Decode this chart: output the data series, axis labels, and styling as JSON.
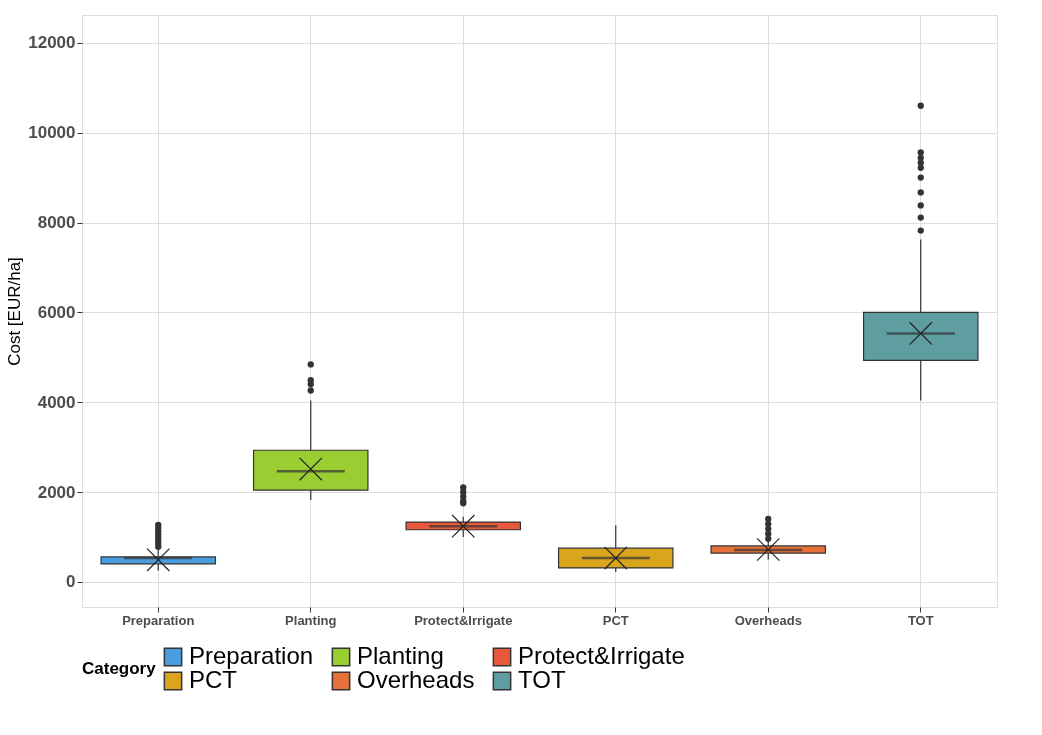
{
  "chart_data": {
    "type": "box",
    "ylabel": "Cost [EUR/ha]",
    "legend_title": "Category",
    "categories": [
      "Preparation",
      "Planting",
      "Protect&Irrigate",
      "PCT",
      "Overheads",
      "TOT"
    ],
    "series": [
      {
        "name": "Preparation",
        "color": "#4a9ee0",
        "boxes": [
          {
            "low": 250,
            "q1": 400,
            "median": 530,
            "q3": 555,
            "high": 720,
            "mean": 490,
            "outliers": [
              1270,
              1200,
              1130,
              1060,
              990,
              920,
              850,
              780
            ]
          },
          null,
          null,
          null,
          null,
          null
        ]
      },
      {
        "name": "Planting",
        "color": "#9acd32",
        "boxes": [
          null,
          {
            "low": 1820,
            "q1": 2040,
            "median": 2460,
            "q3": 2930,
            "high": 4040,
            "mean": 2510,
            "outliers": [
              4840,
              4490,
              4400,
              4260
            ]
          },
          null,
          null,
          null,
          null
        ]
      },
      {
        "name": "Protect&Irrigate",
        "color": "#e8583a",
        "boxes": [
          null,
          null,
          {
            "low": 1000,
            "q1": 1160,
            "median": 1240,
            "q3": 1330,
            "high": 1450,
            "mean": 1240,
            "outliers": [
              2100,
              2000,
              1900,
              1800,
              1750
            ]
          },
          null,
          null,
          null
        ]
      },
      {
        "name": "PCT",
        "color": "#d9a51c",
        "boxes": [
          null,
          null,
          null,
          {
            "low": 220,
            "q1": 310,
            "median": 530,
            "q3": 750,
            "high": 1260,
            "mean": 530
          },
          null,
          null
        ]
      },
      {
        "name": "Overheads",
        "color": "#e8703a",
        "boxes": [
          null,
          null,
          null,
          null,
          {
            "low": 500,
            "q1": 640,
            "median": 710,
            "q3": 800,
            "high": 920,
            "mean": 720,
            "outliers": [
              1400,
              1290,
              1180,
              1070,
              960
            ]
          },
          null
        ]
      },
      {
        "name": "TOT",
        "color": "#5f9ea0",
        "boxes": [
          null,
          null,
          null,
          null,
          null,
          {
            "low": 4040,
            "q1": 4930,
            "median": 5530,
            "q3": 6000,
            "high": 7620,
            "mean": 5530,
            "outliers": [
              10600,
              9560,
              9440,
              9330,
              9220,
              9000,
              8670,
              8380,
              8110,
              7820
            ]
          }
        ]
      }
    ],
    "ylim": [
      -560,
      12620
    ],
    "yticks": [
      0,
      2000,
      4000,
      6000,
      8000,
      10000,
      12000
    ],
    "grid": true,
    "legend": "bottom",
    "marker": "cross"
  }
}
